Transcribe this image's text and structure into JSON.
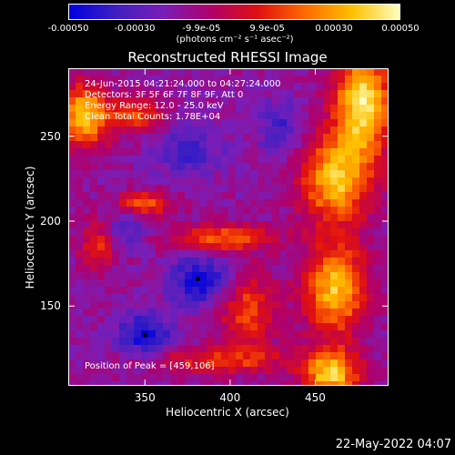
{
  "chart_data": {
    "type": "heatmap",
    "title": "Reconstructed RHESSI Image",
    "xlabel": "Heliocentric X (arcsec)",
    "ylabel": "Heliocentric Y (arcsec)",
    "xlim": [
      305,
      493
    ],
    "ylim": [
      103,
      290
    ],
    "xticks": [
      350,
      400,
      450
    ],
    "yticks": [
      150,
      200,
      250
    ],
    "grid": false,
    "colorbar": {
      "range": [
        -0.0005,
        0.0005
      ],
      "tick_values": [
        -0.0005,
        -0.0003,
        -9.9e-05,
        9.9e-05,
        0.0003,
        0.0005
      ],
      "tick_labels": [
        "-0.00050",
        "-0.00030",
        "-9.9e-05",
        "9.9e-05",
        "0.00030",
        "0.00050"
      ],
      "unit_label": "(photons cm⁻² s⁻¹ asec⁻²)",
      "colors": [
        "#0000e0",
        "#4020c0",
        "#7a1eb8",
        "#b0006a",
        "#e01010",
        "#ff6a00",
        "#ffc000",
        "#ffffc0"
      ]
    },
    "annotations": [
      "24-Jun-2015 04:21:24.000 to 04:27:24.000",
      "Detectors: 3F 5F 6F 7F 8F 9F, Att 0",
      "Energy Range: 12.0 - 25.0 keV",
      "Clean    Total Counts: 1.78E+04"
    ],
    "peak_label": "Position of Peak = [459,106]",
    "markers": [
      {
        "x": 381,
        "y": 166
      },
      {
        "x": 350,
        "y": 133
      }
    ],
    "hot_regions": [
      {
        "x": 478,
        "y": 270,
        "sx": 16,
        "sy": 30,
        "a": 1.0
      },
      {
        "x": 462,
        "y": 225,
        "sx": 20,
        "sy": 26,
        "a": 0.85
      },
      {
        "x": 462,
        "y": 160,
        "sx": 18,
        "sy": 26,
        "a": 0.85
      },
      {
        "x": 459,
        "y": 110,
        "sx": 16,
        "sy": 14,
        "a": 0.9
      },
      {
        "x": 315,
        "y": 262,
        "sx": 14,
        "sy": 18,
        "a": 0.9
      },
      {
        "x": 345,
        "y": 262,
        "sx": 14,
        "sy": 10,
        "a": 0.55
      },
      {
        "x": 350,
        "y": 210,
        "sx": 16,
        "sy": 7,
        "a": 0.55
      },
      {
        "x": 395,
        "y": 190,
        "sx": 30,
        "sy": 8,
        "a": 0.55
      },
      {
        "x": 410,
        "y": 148,
        "sx": 16,
        "sy": 22,
        "a": 0.5
      },
      {
        "x": 395,
        "y": 118,
        "sx": 40,
        "sy": 8,
        "a": 0.45
      },
      {
        "x": 322,
        "y": 185,
        "sx": 10,
        "sy": 14,
        "a": 0.45
      }
    ],
    "cold_regions": [
      {
        "x": 383,
        "y": 165,
        "sx": 18,
        "sy": 14,
        "a": 1.0
      },
      {
        "x": 350,
        "y": 133,
        "sx": 16,
        "sy": 12,
        "a": 1.0
      },
      {
        "x": 375,
        "y": 240,
        "sx": 20,
        "sy": 14,
        "a": 0.6
      },
      {
        "x": 430,
        "y": 255,
        "sx": 14,
        "sy": 16,
        "a": 0.6
      },
      {
        "x": 340,
        "y": 195,
        "sx": 12,
        "sy": 10,
        "a": 0.5
      }
    ]
  },
  "timestamp": "22-May-2022 04:07"
}
